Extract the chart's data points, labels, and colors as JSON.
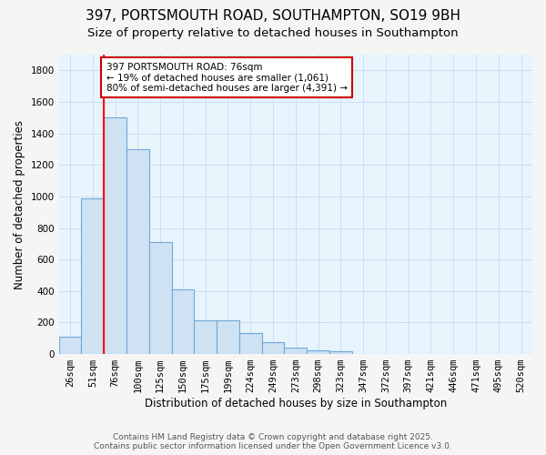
{
  "title_line1": "397, PORTSMOUTH ROAD, SOUTHAMPTON, SO19 9BH",
  "title_line2": "Size of property relative to detached houses in Southampton",
  "xlabel": "Distribution of detached houses by size in Southampton",
  "ylabel": "Number of detached properties",
  "categories": [
    "26sqm",
    "51sqm",
    "76sqm",
    "100sqm",
    "125sqm",
    "150sqm",
    "175sqm",
    "199sqm",
    "224sqm",
    "249sqm",
    "273sqm",
    "298sqm",
    "323sqm",
    "347sqm",
    "372sqm",
    "397sqm",
    "421sqm",
    "446sqm",
    "471sqm",
    "495sqm",
    "520sqm"
  ],
  "values": [
    110,
    990,
    1500,
    1300,
    710,
    410,
    215,
    215,
    135,
    75,
    40,
    25,
    15,
    0,
    0,
    0,
    0,
    0,
    0,
    0,
    0
  ],
  "bar_color": "#cfe2f3",
  "bar_edge_color": "#6fa8d8",
  "background_color": "#e8f4fc",
  "grid_color": "#c8dff0",
  "fig_background": "#f5f5f5",
  "red_line_index": 2,
  "annotation_text": "397 PORTSMOUTH ROAD: 76sqm\n← 19% of detached houses are smaller (1,061)\n80% of semi-detached houses are larger (4,391) →",
  "annotation_box_color": "#ffffff",
  "annotation_box_edge_color": "#cc0000",
  "ylim": [
    0,
    1900
  ],
  "yticks": [
    0,
    200,
    400,
    600,
    800,
    1000,
    1200,
    1400,
    1600,
    1800
  ],
  "footer_line1": "Contains HM Land Registry data © Crown copyright and database right 2025.",
  "footer_line2": "Contains public sector information licensed under the Open Government Licence v3.0.",
  "title_fontsize": 11,
  "subtitle_fontsize": 9.5,
  "axis_label_fontsize": 8.5,
  "tick_fontsize": 7.5,
  "annotation_fontsize": 7.5,
  "footer_fontsize": 6.5
}
